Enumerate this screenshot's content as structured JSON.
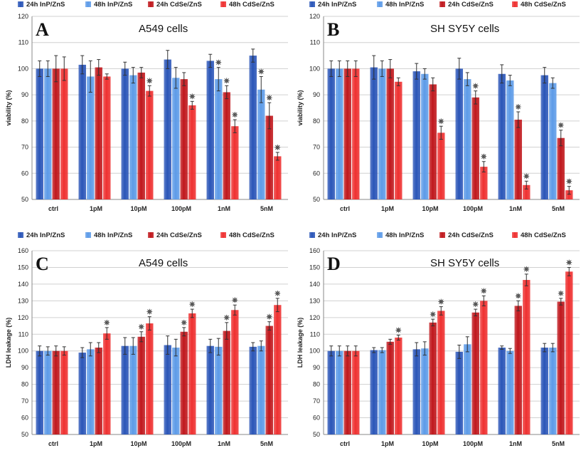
{
  "colors": {
    "inp24": "#2a55b8",
    "inp48": "#5d9be8",
    "cdse24": "#c0171c",
    "cdse48": "#ef3030"
  },
  "chart_data": [
    {
      "panel": "A",
      "title": "A549 cells",
      "type": "bar",
      "ylabel": "viability (%)",
      "ylim": [
        50,
        120
      ],
      "yticks": [
        50,
        60,
        70,
        80,
        90,
        100,
        110,
        120
      ],
      "categories": [
        "ctrl",
        "1pM",
        "10pM",
        "100pM",
        "1nM",
        "5nM"
      ],
      "series": [
        {
          "name": "24h InP/ZnS",
          "values": [
            100,
            101.5,
            100,
            103.5,
            103,
            105
          ],
          "errors": [
            3,
            3.5,
            2.5,
            3.5,
            2.5,
            2.5
          ],
          "significant": [
            false,
            false,
            false,
            false,
            false,
            false
          ]
        },
        {
          "name": "48h InP/ZnS",
          "values": [
            100,
            97,
            97.5,
            96.5,
            96,
            92
          ],
          "errors": [
            3,
            6,
            3,
            4,
            4.5,
            5
          ],
          "significant": [
            false,
            false,
            false,
            false,
            true,
            true
          ]
        },
        {
          "name": "24h CdSe/ZnS",
          "values": [
            100,
            100.5,
            98.5,
            96,
            91,
            82
          ],
          "errors": [
            5,
            3,
            2,
            2.5,
            2.5,
            5
          ],
          "significant": [
            false,
            false,
            false,
            false,
            true,
            true
          ]
        },
        {
          "name": "48h CdSe/ZnS",
          "values": [
            100,
            97,
            91.5,
            86,
            78,
            66.5
          ],
          "errors": [
            4.5,
            1,
            2,
            1.5,
            2.5,
            1.5
          ],
          "significant": [
            false,
            false,
            true,
            true,
            true,
            true
          ]
        }
      ]
    },
    {
      "panel": "B",
      "title": "SH SY5Y cells",
      "type": "bar",
      "ylabel": "viability (%)",
      "ylim": [
        50,
        120
      ],
      "yticks": [
        50,
        60,
        70,
        80,
        90,
        100,
        110,
        120
      ],
      "categories": [
        "ctrl",
        "1pM",
        "10pM",
        "100pM",
        "1nM",
        "5nM"
      ],
      "series": [
        {
          "name": "24h InP/ZnS",
          "values": [
            100,
            100.5,
            99,
            100,
            98,
            97.5
          ],
          "errors": [
            3,
            4.5,
            3,
            4,
            3.5,
            3
          ],
          "significant": [
            false,
            false,
            false,
            false,
            false,
            false
          ]
        },
        {
          "name": "48h InP/ZnS",
          "values": [
            100,
            100,
            98,
            96,
            95.5,
            94.5
          ],
          "errors": [
            3,
            3,
            2,
            2.5,
            2,
            2
          ],
          "significant": [
            false,
            false,
            false,
            false,
            false,
            false
          ]
        },
        {
          "name": "24h CdSe/ZnS",
          "values": [
            100,
            100,
            94,
            89,
            80.5,
            73.5
          ],
          "errors": [
            3,
            3.5,
            2.5,
            2.5,
            3,
            3
          ],
          "significant": [
            false,
            false,
            false,
            true,
            true,
            true
          ]
        },
        {
          "name": "48h CdSe/ZnS",
          "values": [
            100,
            95,
            75.5,
            62.5,
            55.5,
            53.5
          ],
          "errors": [
            3,
            1.5,
            2.5,
            2,
            1.5,
            1.5
          ],
          "significant": [
            false,
            false,
            true,
            true,
            true,
            true
          ]
        }
      ]
    },
    {
      "panel": "C",
      "title": "A549 cells",
      "type": "bar",
      "ylabel": "LDH leakage (%)",
      "ylim": [
        50,
        160
      ],
      "yticks": [
        50,
        60,
        70,
        80,
        90,
        100,
        110,
        120,
        130,
        140,
        150,
        160
      ],
      "categories": [
        "ctrl",
        "1pM",
        "10pM",
        "100pM",
        "1nM",
        "5nM"
      ],
      "series": [
        {
          "name": "24h InP/ZnS",
          "values": [
            100,
            99,
            103,
            103.5,
            103,
            102.5
          ],
          "errors": [
            3,
            3,
            5,
            5.5,
            4,
            2.5
          ],
          "significant": [
            false,
            false,
            false,
            false,
            false,
            false
          ]
        },
        {
          "name": "48h InP/ZnS",
          "values": [
            100,
            101,
            103,
            102,
            102.5,
            103
          ],
          "errors": [
            2.5,
            4,
            5,
            5,
            5,
            3
          ],
          "significant": [
            false,
            false,
            false,
            false,
            false,
            false
          ]
        },
        {
          "name": "24h CdSe/ZnS",
          "values": [
            100,
            102,
            108.5,
            111.5,
            112,
            115
          ],
          "errors": [
            3,
            3,
            3,
            2.5,
            5,
            2.5
          ],
          "significant": [
            false,
            false,
            true,
            true,
            true,
            true
          ]
        },
        {
          "name": "48h CdSe/ZnS",
          "values": [
            100,
            110.5,
            116.5,
            122.5,
            124.5,
            127.5
          ],
          "errors": [
            2.5,
            3.5,
            4,
            2.5,
            3,
            4
          ],
          "significant": [
            false,
            true,
            true,
            true,
            true,
            true
          ]
        }
      ]
    },
    {
      "panel": "D",
      "title": "SH SY5Y cells",
      "type": "bar",
      "ylabel": "LDH leakage (%)",
      "ylim": [
        50,
        160
      ],
      "yticks": [
        50,
        60,
        70,
        80,
        90,
        100,
        110,
        120,
        130,
        140,
        150,
        160
      ],
      "categories": [
        "ctrl",
        "1pM",
        "10pM",
        "100pM",
        "1nM",
        "5nM"
      ],
      "series": [
        {
          "name": "24h InP/ZnS",
          "values": [
            100,
            100.5,
            101,
            99.5,
            102,
            102
          ],
          "errors": [
            3,
            1.5,
            4,
            4,
            1,
            2.5
          ],
          "significant": [
            false,
            false,
            false,
            false,
            false,
            false
          ]
        },
        {
          "name": "48h InP/ZnS",
          "values": [
            100,
            100.5,
            101.5,
            104,
            100,
            102
          ],
          "errors": [
            3,
            1.5,
            4,
            4.5,
            1.5,
            2.5
          ],
          "significant": [
            false,
            false,
            false,
            false,
            false,
            false
          ]
        },
        {
          "name": "24h CdSe/ZnS",
          "values": [
            100,
            105.5,
            117,
            123,
            127,
            129.5
          ],
          "errors": [
            3,
            1.5,
            2,
            2,
            3,
            2
          ],
          "significant": [
            false,
            false,
            true,
            true,
            true,
            true
          ]
        },
        {
          "name": "48h CdSe/ZnS",
          "values": [
            100,
            108,
            124,
            130,
            142.5,
            147.5
          ],
          "errors": [
            3,
            1.5,
            2.5,
            3,
            3.5,
            2.5
          ],
          "significant": [
            false,
            true,
            true,
            true,
            true,
            true
          ]
        }
      ]
    }
  ]
}
